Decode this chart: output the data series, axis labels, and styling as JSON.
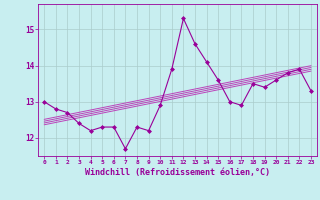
{
  "hours": [
    0,
    1,
    2,
    3,
    4,
    5,
    6,
    7,
    8,
    9,
    10,
    11,
    12,
    13,
    14,
    15,
    16,
    17,
    18,
    19,
    20,
    21,
    22,
    23
  ],
  "windchill": [
    13.0,
    12.8,
    12.7,
    12.4,
    12.2,
    12.3,
    12.3,
    11.7,
    12.3,
    12.2,
    12.9,
    13.9,
    15.3,
    14.6,
    14.1,
    13.6,
    13.0,
    12.9,
    13.5,
    13.4,
    13.6,
    13.8,
    13.9,
    13.3
  ],
  "line_color": "#990099",
  "marker": "D",
  "marker_size": 2,
  "bg_color": "#c8eef0",
  "grid_color": "#aacccc",
  "axes_color": "#990099",
  "tick_color": "#990099",
  "xlabel": "Windchill (Refroidissement éolien,°C)",
  "xlabel_fontsize": 6,
  "ylim": [
    11.5,
    15.7
  ],
  "yticks": [
    12,
    13,
    14,
    15
  ],
  "regression_color": "#bb44bb",
  "reg_offsets": [
    -0.05,
    0.0,
    0.05,
    0.1
  ]
}
